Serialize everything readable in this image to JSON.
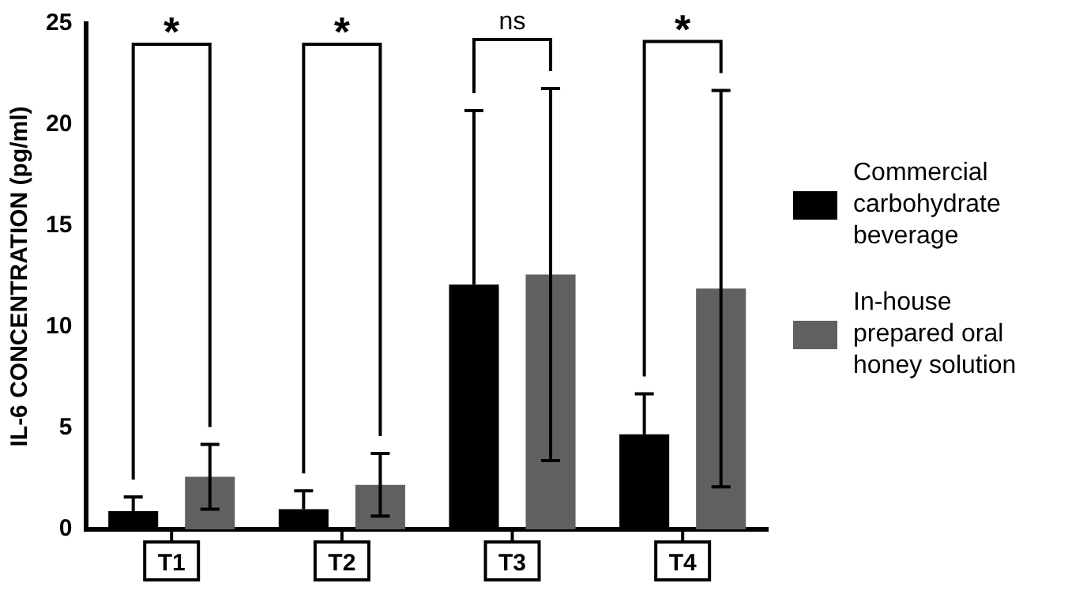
{
  "chart_data": {
    "type": "bar",
    "ylabel": "IL-6 CONCENTRATION (pg/ml)",
    "categories": [
      "T1",
      "T2",
      "T3",
      "T4"
    ],
    "series": [
      {
        "name": "Commercial carbohydrate beverage",
        "color": "#000000",
        "values": [
          0.9,
          1.0,
          12.1,
          4.7
        ],
        "errors": [
          [
            0.9,
            1.6
          ],
          [
            1.0,
            1.9
          ],
          [
            12.1,
            20.7
          ],
          [
            4.7,
            6.7
          ]
        ]
      },
      {
        "name": "In-house prepared oral honey solution",
        "color": "#606060",
        "values": [
          2.6,
          2.2,
          12.6,
          11.9
        ],
        "errors": [
          1.6,
          1.55,
          9.2,
          9.8
        ]
      }
    ],
    "ylim": [
      0,
      25
    ],
    "yticks": [
      0,
      5,
      10,
      15,
      20,
      25
    ],
    "grid": false,
    "legend": "right",
    "annotations": [
      "*",
      "*",
      "ns",
      "*"
    ]
  }
}
